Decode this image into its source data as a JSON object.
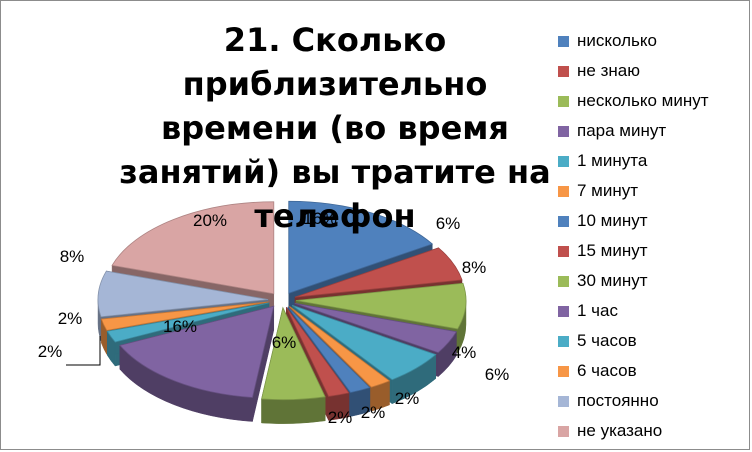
{
  "chart_data": {
    "type": "pie",
    "variant": "exploded-3d",
    "title": "21. Сколько приблизительно времени (во время занятий) вы тратите на телефон",
    "legend_position": "right",
    "slices": [
      {
        "label": "нисколько",
        "value": 16,
        "value_label": "16%",
        "color": "#4F81BD"
      },
      {
        "label": "не знаю",
        "value": 6,
        "value_label": "6%",
        "color": "#C0504D"
      },
      {
        "label": "несколько минут",
        "value": 8,
        "value_label": "8%",
        "color": "#9BBB59"
      },
      {
        "label": "пара минут",
        "value": 4,
        "value_label": "4%",
        "color": "#8064A2"
      },
      {
        "label": "1 минута",
        "value": 6,
        "value_label": "6%",
        "color": "#4BACC6"
      },
      {
        "label": "7 минут",
        "value": 2,
        "value_label": "2%",
        "color": "#F79646"
      },
      {
        "label": "10 минут",
        "value": 2,
        "value_label": "2%",
        "color": "#4F81BD"
      },
      {
        "label": "15 минут",
        "value": 2,
        "value_label": "2%",
        "color": "#C0504D"
      },
      {
        "label": "30 минут",
        "value": 6,
        "value_label": "6%",
        "color": "#9BBB59"
      },
      {
        "label": "1 час",
        "value": 16,
        "value_label": "16%",
        "color": "#8064A2"
      },
      {
        "label": "5 часов",
        "value": 2,
        "value_label": "2%",
        "color": "#4BACC6"
      },
      {
        "label": "6 часов",
        "value": 2,
        "value_label": "2%",
        "color": "#F79646"
      },
      {
        "label": "постоянно",
        "value": 8,
        "value_label": "8%",
        "color": "#A5B6D6"
      },
      {
        "label": "не указано",
        "value": 20,
        "value_label": "20%",
        "color": "#D9A5A4"
      }
    ]
  }
}
